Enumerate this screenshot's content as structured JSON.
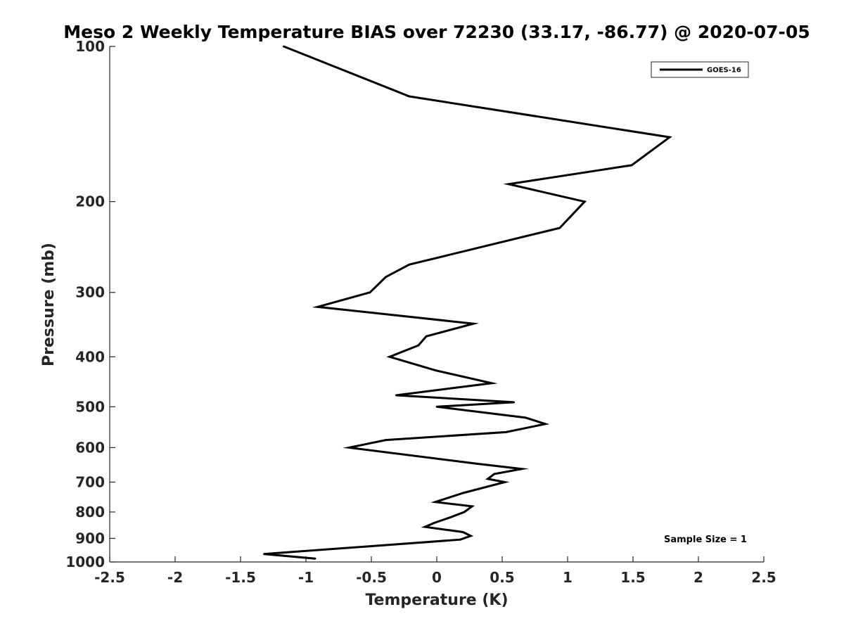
{
  "chart_data": {
    "type": "line",
    "title": "Meso 2 Weekly Temperature BIAS over 72230 (33.17, -86.77) @ 2020-07-05",
    "xlabel": "Temperature (K)",
    "ylabel": "Pressure (mb)",
    "xlim": [
      -2.5,
      2.5
    ],
    "ylim": [
      100,
      1000
    ],
    "yscale": "log",
    "y_reversed": true,
    "grid": false,
    "legend_position": "top-right",
    "x_ticks": [
      -2.5,
      -2,
      -1.5,
      -1,
      -0.5,
      0,
      0.5,
      1,
      1.5,
      2,
      2.5
    ],
    "x_tick_labels": [
      "-2.5",
      "-2",
      "-1.5",
      "-1",
      "-0.5",
      "0",
      "0.5",
      "1",
      "1.5",
      "2",
      "2.5"
    ],
    "y_ticks": [
      100,
      200,
      300,
      400,
      500,
      600,
      700,
      800,
      900,
      1000
    ],
    "y_tick_labels": [
      "100",
      "200",
      "300",
      "400",
      "500",
      "600",
      "700",
      "800",
      "900",
      "1000"
    ],
    "series": [
      {
        "name": "GOES-16",
        "color": "#000000",
        "points": [
          [
            -1.17,
            100
          ],
          [
            -0.21,
            125
          ],
          [
            1.78,
            150
          ],
          [
            1.49,
            170
          ],
          [
            0.55,
            185
          ],
          [
            1.13,
            200
          ],
          [
            0.94,
            225
          ],
          [
            -0.21,
            265
          ],
          [
            -0.39,
            280
          ],
          [
            -0.51,
            300
          ],
          [
            -0.91,
            320
          ],
          [
            0.28,
            345
          ],
          [
            -0.08,
            365
          ],
          [
            -0.14,
            380
          ],
          [
            -0.36,
            400
          ],
          [
            -0.01,
            425
          ],
          [
            0.42,
            450
          ],
          [
            -0.31,
            475
          ],
          [
            0.59,
            490
          ],
          [
            0.0,
            500
          ],
          [
            0.68,
            525
          ],
          [
            0.83,
            540
          ],
          [
            0.53,
            560
          ],
          [
            -0.39,
            580
          ],
          [
            -0.67,
            600
          ],
          [
            0.31,
            645
          ],
          [
            0.65,
            660
          ],
          [
            0.44,
            675
          ],
          [
            0.39,
            690
          ],
          [
            0.52,
            700
          ],
          [
            0.2,
            735
          ],
          [
            -0.01,
            765
          ],
          [
            0.27,
            780
          ],
          [
            0.21,
            800
          ],
          [
            0.1,
            820
          ],
          [
            -0.02,
            840
          ],
          [
            -0.09,
            855
          ],
          [
            0.2,
            875
          ],
          [
            0.26,
            890
          ],
          [
            0.18,
            905
          ],
          [
            -1.32,
            965
          ],
          [
            -0.93,
            985
          ]
        ]
      }
    ],
    "annotations": [
      "Sample Size = 1"
    ]
  }
}
